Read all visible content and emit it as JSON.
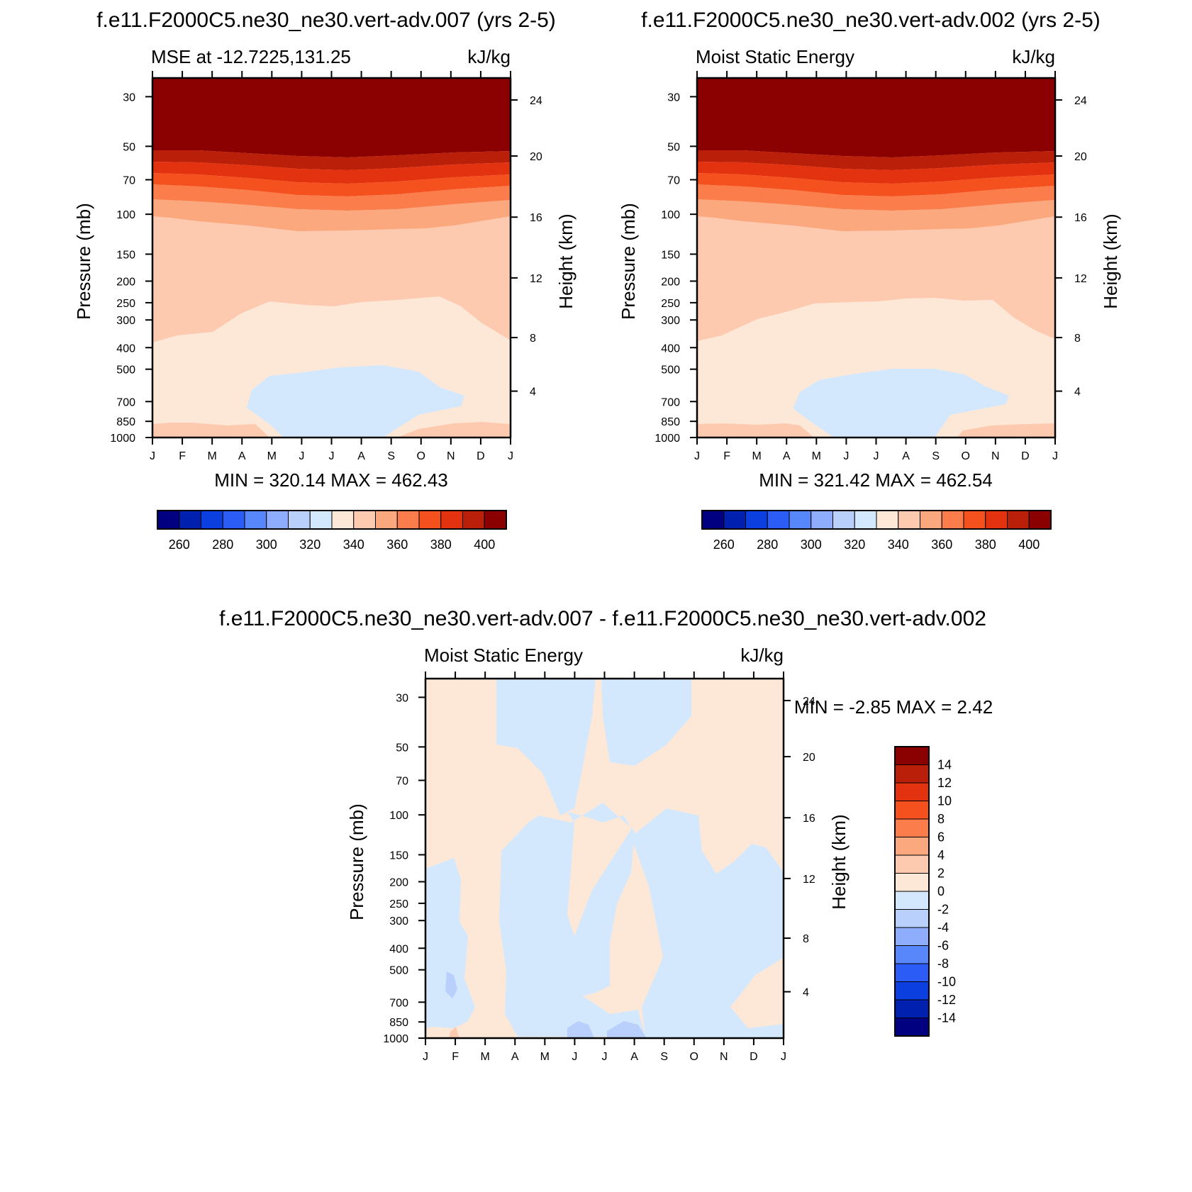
{
  "chart_data": [
    {
      "type": "heatmap",
      "id": "panel1",
      "title": "f.e11.F2000C5.ne30_ne30.vert-adv.007 (yrs 2-5)",
      "subtitle_left": "MSE at -12.7225,131.25",
      "subtitle_right": "kJ/kg",
      "ylabel": "Pressure (mb)",
      "ylabel_right": "Height (km)",
      "x_ticks": [
        "J",
        "F",
        "M",
        "A",
        "M",
        "J",
        "J",
        "A",
        "S",
        "O",
        "N",
        "D",
        "J"
      ],
      "y_ticks": [
        "30",
        "50",
        "70",
        "100",
        "150",
        "200",
        "250",
        "300",
        "400",
        "500",
        "700",
        "850",
        "1000"
      ],
      "y_ticks_right": [
        "24",
        "20",
        "16",
        "12",
        "8",
        "4"
      ],
      "stats": "MIN = 320.14 MAX = 462.43",
      "colorbar": {
        "orientation": "horizontal",
        "colors": [
          "#000080",
          "#0020b0",
          "#0b3fe0",
          "#2b5cf6",
          "#5887fb",
          "#8eaefd",
          "#b9cffc",
          "#d4e8fd",
          "#fde8d8",
          "#fdcab0",
          "#fca87f",
          "#fb7d4c",
          "#f5511f",
          "#e23210",
          "#ba1f0a",
          "#8b0000"
        ],
        "labels": [
          "260",
          "280",
          "300",
          "320",
          "340",
          "360",
          "380",
          "400"
        ],
        "levels": [
          250,
          260,
          270,
          280,
          290,
          300,
          310,
          320,
          330,
          340,
          350,
          360,
          370,
          380,
          390,
          400,
          410
        ]
      }
    },
    {
      "type": "heatmap",
      "id": "panel2",
      "title": "f.e11.F2000C5.ne30_ne30.vert-adv.002 (yrs 2-5)",
      "subtitle_left": "Moist Static Energy",
      "subtitle_right": "kJ/kg",
      "ylabel": "Pressure (mb)",
      "ylabel_right": "Height (km)",
      "x_ticks": [
        "J",
        "F",
        "M",
        "A",
        "M",
        "J",
        "J",
        "A",
        "S",
        "O",
        "N",
        "D",
        "J"
      ],
      "y_ticks": [
        "30",
        "50",
        "70",
        "100",
        "150",
        "200",
        "250",
        "300",
        "400",
        "500",
        "700",
        "850",
        "1000"
      ],
      "y_ticks_right": [
        "24",
        "20",
        "16",
        "12",
        "8",
        "4"
      ],
      "stats": "MIN = 321.42 MAX = 462.54",
      "colorbar": {
        "orientation": "horizontal",
        "colors": [
          "#000080",
          "#0020b0",
          "#0b3fe0",
          "#2b5cf6",
          "#5887fb",
          "#8eaefd",
          "#b9cffc",
          "#d4e8fd",
          "#fde8d8",
          "#fdcab0",
          "#fca87f",
          "#fb7d4c",
          "#f5511f",
          "#e23210",
          "#ba1f0a",
          "#8b0000"
        ],
        "labels": [
          "260",
          "280",
          "300",
          "320",
          "340",
          "360",
          "380",
          "400"
        ],
        "levels": [
          250,
          260,
          270,
          280,
          290,
          300,
          310,
          320,
          330,
          340,
          350,
          360,
          370,
          380,
          390,
          400,
          410
        ]
      }
    },
    {
      "type": "heatmap",
      "id": "panel3",
      "title": "f.e11.F2000C5.ne30_ne30.vert-adv.007 - f.e11.F2000C5.ne30_ne30.vert-adv.002",
      "subtitle_left": "Moist Static Energy",
      "subtitle_right": "kJ/kg",
      "ylabel": "Pressure (mb)",
      "ylabel_right": "Height (km)",
      "x_ticks": [
        "J",
        "F",
        "M",
        "A",
        "M",
        "J",
        "J",
        "A",
        "S",
        "O",
        "N",
        "D",
        "J"
      ],
      "y_ticks": [
        "30",
        "50",
        "70",
        "100",
        "150",
        "200",
        "250",
        "300",
        "400",
        "500",
        "700",
        "850",
        "1000"
      ],
      "y_ticks_right": [
        "24",
        "20",
        "16",
        "12",
        "8",
        "4"
      ],
      "stats": "MIN =  -2.85 MAX =   2.42",
      "colorbar": {
        "orientation": "vertical",
        "colors": [
          "#000080",
          "#0020b0",
          "#0b3fe0",
          "#2b5cf6",
          "#5887fb",
          "#8eaefd",
          "#b9cffc",
          "#d4e8fd",
          "#fde8d8",
          "#fdcab0",
          "#fca87f",
          "#fb7d4c",
          "#f5511f",
          "#e23210",
          "#ba1f0a",
          "#8b0000"
        ],
        "labels": [
          "14",
          "12",
          "10",
          "8",
          "6",
          "4",
          "2",
          "0",
          "-2",
          "-4",
          "-6",
          "-8",
          "-10",
          "-12",
          "-14"
        ],
        "levels": [
          -16,
          -14,
          -12,
          -10,
          -8,
          -6,
          -4,
          -2,
          0,
          2,
          4,
          6,
          8,
          10,
          12,
          14,
          16
        ]
      }
    }
  ]
}
